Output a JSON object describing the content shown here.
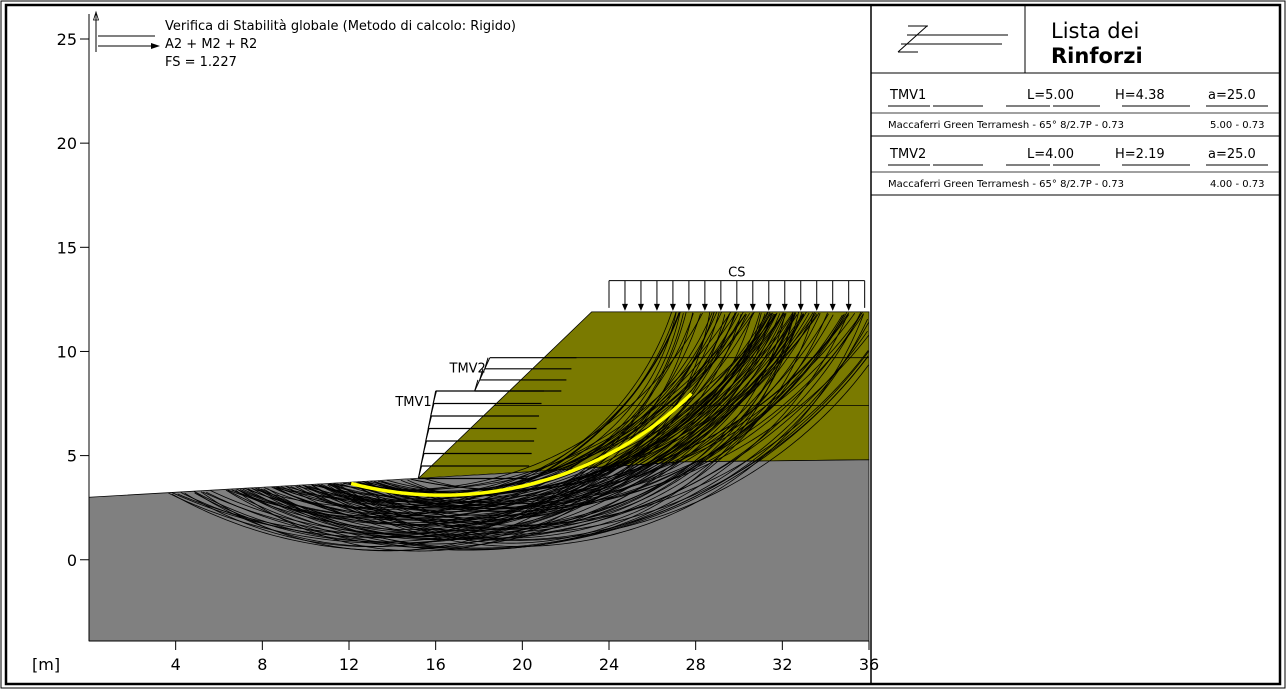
{
  "colors": {
    "foundation": "#808080",
    "backfill": "#7a7a00",
    "surfaces": "#000000",
    "critical_surface": "#ffff00",
    "background": "#ffffff"
  },
  "analysis": {
    "title": "Verifica di Stabilità globale (Metodo di calcolo: Rigido)",
    "combination": "A2 + M2 + R2",
    "fs": "FS = 1.227"
  },
  "units_label": "[m]",
  "load_label": "CS",
  "chart_data": {
    "type": "diagram",
    "x_ticks": [
      4,
      8,
      12,
      16,
      20,
      24,
      28,
      32,
      36
    ],
    "y_ticks": [
      0,
      5,
      10,
      15,
      20,
      25
    ],
    "x_tick_labels": [
      "4",
      "8",
      "12",
      "16",
      "20",
      "24",
      "28",
      "32",
      "36"
    ],
    "y_tick_labels": [
      "0",
      "5",
      "10",
      "15",
      "20",
      "25"
    ],
    "xlim": [
      0,
      36
    ],
    "ylim": [
      -3.9,
      26.2
    ],
    "ground_profile": [
      [
        0,
        3
      ],
      [
        15.2,
        3.9
      ],
      [
        23.2,
        11.9
      ],
      [
        36,
        11.9
      ]
    ],
    "foundation_top": [
      [
        0,
        3
      ],
      [
        20,
        4.2
      ],
      [
        27.4,
        4.7
      ],
      [
        36,
        4.8
      ]
    ],
    "layer_lines_y": [
      9.7,
      7.4
    ],
    "distributed_load": {
      "x_start": 24,
      "x_end": 35.8,
      "y_base": 11.9,
      "y_top": 13.4
    },
    "critical_surface": {
      "cx": 16.3,
      "cy": 19.1,
      "r": 16.0,
      "x_start": 12.1,
      "x_end": 27.8
    },
    "reinforcement_groups": [
      {
        "label": "TMV1",
        "y_base": 3.9,
        "y_top": 8.1,
        "x_face_base": 15.2,
        "x_face_top": 16.0,
        "length": 5.0,
        "layers": 7
      },
      {
        "label": "TMV2",
        "y_base": 8.1,
        "y_top": 9.7,
        "x_face_base": 17.8,
        "x_face_top": 18.5,
        "length": 4.0,
        "layers": 3
      }
    ]
  },
  "legend": {
    "title_line1": "Lista dei",
    "title_line2": "Rinforzi",
    "rows": [
      {
        "name": "TMV1",
        "L": "L=5.00",
        "H": "H=4.38",
        "a": "a=25.0",
        "material": "Maccaferri Green Terramesh - 65° 8/2.7P - 0.73",
        "dims": "5.00 - 0.73"
      },
      {
        "name": "TMV2",
        "L": "L=4.00",
        "H": "H=2.19",
        "a": "a=25.0",
        "material": "Maccaferri Green Terramesh - 65° 8/2.7P - 0.73",
        "dims": "4.00 - 0.73"
      }
    ]
  }
}
